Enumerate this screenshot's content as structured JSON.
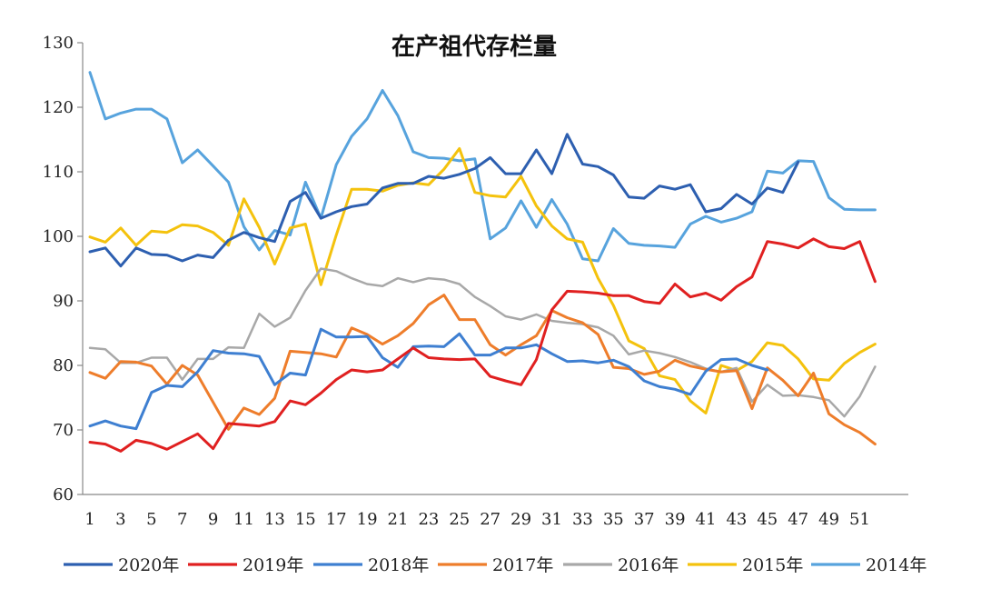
{
  "chart_data": {
    "type": "line",
    "title": "在产祖代存栏量",
    "xlabel": "",
    "ylabel": "",
    "xlim": [
      1,
      53
    ],
    "ylim": [
      60,
      130
    ],
    "y_ticks": [
      60,
      70,
      80,
      90,
      100,
      110,
      120,
      130
    ],
    "x_ticks": [
      1,
      3,
      5,
      7,
      9,
      11,
      13,
      15,
      17,
      19,
      21,
      23,
      25,
      27,
      29,
      31,
      33,
      35,
      37,
      39,
      41,
      43,
      45,
      47,
      49,
      51
    ],
    "grid": false,
    "legend": "bottom",
    "series": [
      {
        "name": "2020年",
        "color": "#2d5fb0",
        "width": 3,
        "values": [
          97.6,
          98.2,
          95.4,
          98.2,
          97.2,
          97.1,
          96.2,
          97.1,
          96.7,
          99.4,
          100.6,
          99.8,
          99.2,
          105.4,
          106.8,
          102.8,
          103.8,
          104.6,
          105.0,
          107.5,
          108.2,
          108.2,
          109.3,
          109.0,
          109.6,
          110.5,
          112.2,
          109.7,
          109.7,
          113.4,
          109.7,
          115.8,
          111.2,
          110.8,
          109.5,
          106.1,
          105.9,
          107.8,
          107.3,
          108.0,
          103.8,
          104.3,
          106.5,
          105.0,
          107.5,
          106.8,
          111.5
        ]
      },
      {
        "name": "2019年",
        "color": "#e02020",
        "width": 3,
        "values": [
          68.1,
          67.8,
          66.7,
          68.4,
          67.9,
          67.0,
          68.2,
          69.4,
          67.1,
          71.0,
          70.8,
          70.6,
          71.3,
          74.5,
          73.9,
          75.7,
          77.8,
          79.3,
          79.0,
          79.3,
          81.0,
          82.7,
          81.2,
          81.0,
          80.9,
          81.0,
          78.3,
          77.6,
          77.0,
          80.9,
          88.6,
          91.5,
          91.4,
          91.2,
          90.8,
          90.8,
          89.9,
          89.6,
          92.6,
          90.6,
          91.2,
          90.1,
          92.2,
          93.7,
          99.2,
          98.8,
          98.2,
          99.6,
          98.4,
          98.1,
          99.2,
          93.0
        ]
      },
      {
        "name": "2018年",
        "color": "#3e7fd1",
        "width": 3,
        "values": [
          70.6,
          71.4,
          70.6,
          70.2,
          75.8,
          76.9,
          76.7,
          79.0,
          82.3,
          81.9,
          81.8,
          81.4,
          77.0,
          78.8,
          78.5,
          85.6,
          84.4,
          84.4,
          84.5,
          81.2,
          79.7,
          82.9,
          83.0,
          82.9,
          84.9,
          81.6,
          81.6,
          82.7,
          82.7,
          83.2,
          81.8,
          80.6,
          80.7,
          80.4,
          80.8,
          79.8,
          77.6,
          76.7,
          76.3,
          75.5,
          79.1,
          80.9,
          81.0,
          80.0,
          79.3
        ]
      },
      {
        "name": "2017年",
        "color": "#ee7d2b",
        "width": 3,
        "values": [
          78.9,
          78.0,
          80.6,
          80.5,
          79.9,
          77.1,
          80.0,
          78.5,
          74.3,
          70.1,
          73.4,
          72.4,
          74.9,
          82.2,
          82.0,
          81.8,
          81.3,
          85.8,
          84.8,
          83.3,
          84.6,
          86.5,
          89.4,
          90.9,
          87.1,
          87.1,
          83.2,
          81.6,
          83.2,
          84.6,
          88.5,
          87.4,
          86.6,
          84.8,
          79.7,
          79.5,
          78.6,
          79.1,
          80.8,
          79.9,
          79.4,
          79.0,
          79.2,
          73.3,
          79.6,
          77.7,
          75.3,
          78.8,
          72.5,
          70.8,
          69.6,
          67.8
        ]
      },
      {
        "name": "2016年",
        "color": "#a8a8a8",
        "width": 2.5,
        "values": [
          82.7,
          82.5,
          80.4,
          80.4,
          81.2,
          81.2,
          77.8,
          81.0,
          81.0,
          82.8,
          82.7,
          88.0,
          86.0,
          87.4,
          91.6,
          95.0,
          94.6,
          93.5,
          92.6,
          92.3,
          93.5,
          92.9,
          93.5,
          93.3,
          92.6,
          90.6,
          89.2,
          87.6,
          87.1,
          87.9,
          86.9,
          86.6,
          86.4,
          85.9,
          84.6,
          81.7,
          82.3,
          81.9,
          81.3,
          80.5,
          79.5,
          79.0,
          79.6,
          74.4,
          77.0,
          75.3,
          75.4,
          75.1,
          74.6,
          72.1,
          75.2,
          79.8
        ]
      },
      {
        "name": "2015年",
        "color": "#f4c20d",
        "width": 3,
        "values": [
          99.9,
          99.1,
          101.3,
          98.6,
          100.8,
          100.6,
          101.8,
          101.6,
          100.6,
          98.6,
          105.8,
          101.4,
          95.7,
          101.3,
          101.9,
          92.5,
          100.2,
          107.3,
          107.3,
          107.0,
          107.9,
          108.3,
          108.0,
          110.4,
          113.6,
          106.8,
          106.3,
          106.1,
          109.3,
          104.7,
          101.6,
          99.6,
          99.1,
          93.5,
          89.3,
          83.8,
          82.6,
          78.4,
          77.8,
          74.5,
          72.6,
          80.0,
          79.2,
          80.6,
          83.5,
          83.1,
          81.0,
          77.9,
          77.7,
          80.3,
          82.0,
          83.3
        ]
      },
      {
        "name": "2014年",
        "color": "#57a3dd",
        "width": 3,
        "values": [
          125.4,
          118.2,
          119.1,
          119.7,
          119.7,
          118.2,
          111.4,
          113.4,
          110.9,
          108.4,
          101.5,
          97.9,
          100.9,
          100.2,
          108.4,
          102.8,
          111.1,
          115.5,
          118.2,
          122.6,
          118.7,
          113.1,
          112.2,
          112.1,
          111.7,
          112.0,
          99.6,
          101.3,
          105.5,
          101.4,
          105.7,
          101.9,
          96.5,
          96.2,
          101.2,
          98.9,
          98.6,
          98.5,
          98.3,
          101.9,
          103.1,
          102.2,
          102.8,
          103.8,
          110.1,
          109.8,
          111.7,
          111.6,
          106.0,
          104.2,
          104.1,
          104.1
        ]
      }
    ]
  }
}
